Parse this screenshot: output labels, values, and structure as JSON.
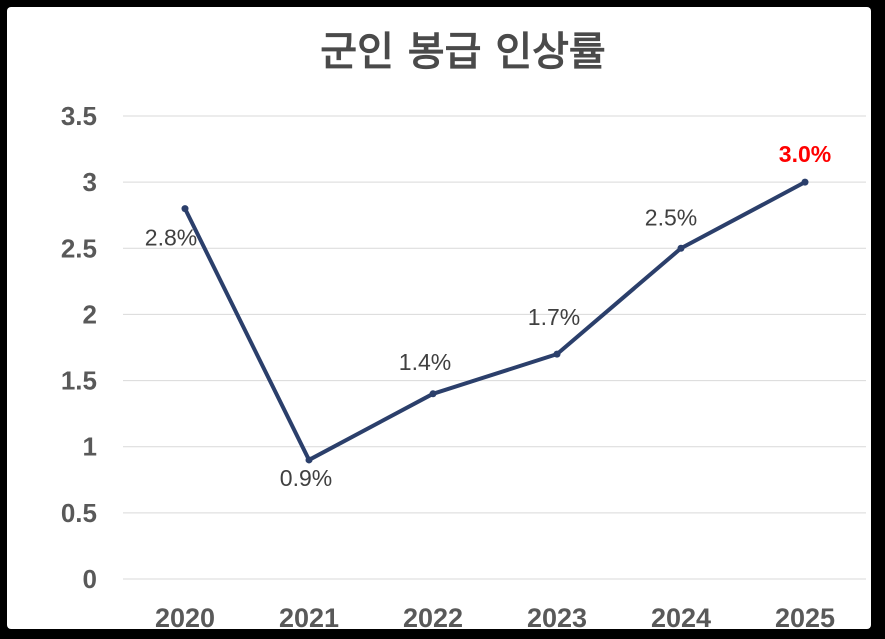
{
  "chart_data": {
    "type": "line",
    "title": "군인 봉급 인상률",
    "xlabel": "",
    "ylabel": "",
    "categories": [
      "2020",
      "2021",
      "2022",
      "2023",
      "2024",
      "2025"
    ],
    "values": [
      2.8,
      0.9,
      1.4,
      1.7,
      2.5,
      3.0
    ],
    "data_labels": [
      "2.8%",
      "0.9%",
      "1.4%",
      "1.7%",
      "2.5%",
      "3.0%"
    ],
    "ylim": [
      0,
      3.5
    ],
    "yticks": [
      "0",
      "0.5",
      "1",
      "1.5",
      "2",
      "2.5",
      "3",
      "3.5"
    ],
    "grid": true,
    "legend": "none",
    "colors": {
      "line": "#2b3f6b",
      "highlight_label": "#ff0000",
      "grid": "#d9d9d9",
      "tick_text": "#595959",
      "title_text": "#4a4a4a"
    },
    "highlight_index": 5
  }
}
